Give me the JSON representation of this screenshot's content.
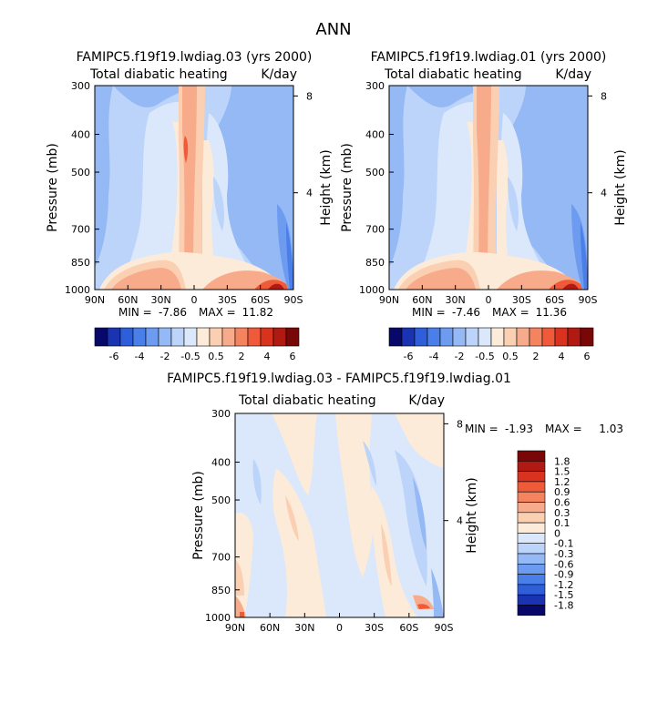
{
  "page_title": "ANN",
  "chart_data": [
    {
      "type": "heatmap",
      "title": "FAMIPC5.f19f19.lwdiag.03 (yrs 2000)",
      "left_string": "Total diabatic heating",
      "right_string": "K/day",
      "ylabel": "Pressure (mb)",
      "ylabel_right": "Height (km)",
      "x_ticks": [
        "90N",
        "60N",
        "30N",
        "0",
        "30S",
        "60S",
        "90S"
      ],
      "y_ticks": [
        "300",
        "400",
        "500",
        "700",
        "850",
        "1000"
      ],
      "y_ticks_right": [
        "8",
        "4"
      ],
      "stats": {
        "min_label": "MIN =",
        "min": "-7.86",
        "max_label": "MAX =",
        "max": "11.82"
      },
      "colorbar_labels": [
        "-6",
        "-4",
        "-2",
        "-0.5",
        "0.5",
        "2",
        "4",
        "6"
      ]
    },
    {
      "type": "heatmap",
      "title": "FAMIPC5.f19f19.lwdiag.01 (yrs 2000)",
      "left_string": "Total diabatic heating",
      "right_string": "K/day",
      "ylabel": "Pressure (mb)",
      "ylabel_right": "Height (km)",
      "x_ticks": [
        "90N",
        "60N",
        "30N",
        "0",
        "30S",
        "60S",
        "90S"
      ],
      "y_ticks": [
        "300",
        "400",
        "500",
        "700",
        "850",
        "1000"
      ],
      "y_ticks_right": [
        "8",
        "4"
      ],
      "stats": {
        "min_label": "MIN =",
        "min": "-7.46",
        "max_label": "MAX =",
        "max": "11.36"
      },
      "colorbar_labels": [
        "-6",
        "-4",
        "-2",
        "-0.5",
        "0.5",
        "2",
        "4",
        "6"
      ]
    },
    {
      "type": "heatmap",
      "title": "FAMIPC5.f19f19.lwdiag.03 - FAMIPC5.f19f19.lwdiag.01",
      "left_string": "Total diabatic heating",
      "right_string": "K/day",
      "ylabel": "Pressure (mb)",
      "ylabel_right": "Height (km)",
      "x_ticks": [
        "90N",
        "60N",
        "30N",
        "0",
        "30S",
        "60S",
        "90S"
      ],
      "y_ticks": [
        "300",
        "400",
        "500",
        "700",
        "850",
        "1000"
      ],
      "y_ticks_right": [
        "8",
        "4"
      ],
      "stats": {
        "min_label": "MIN =",
        "min": "-1.93",
        "max_label": "MAX =",
        "max": "1.03"
      },
      "colorbar_labels": [
        "1.8",
        "1.5",
        "1.2",
        "0.9",
        "0.6",
        "0.3",
        "0.1",
        "0",
        "-0.1",
        "-0.3",
        "-0.6",
        "-0.9",
        "-1.2",
        "-1.5",
        "-1.8"
      ]
    }
  ],
  "palettes": {
    "main": [
      "#08086b",
      "#1a33b3",
      "#2e5ed9",
      "#4a7ee8",
      "#6d9bf0",
      "#94b9f5",
      "#bcd4f9",
      "#dbe8fb",
      "#fdebd9",
      "#fbcfb2",
      "#f8ab8a",
      "#f4845f",
      "#ee5a3a",
      "#d9321e",
      "#b11a12",
      "#7a0707"
    ],
    "diff": [
      "#7a0707",
      "#b11a12",
      "#d9321e",
      "#ee5a3a",
      "#f4845f",
      "#f8ab8a",
      "#fbcfb2",
      "#fdebd9",
      "#dbe8fb",
      "#bcd4f9",
      "#94b9f5",
      "#6d9bf0",
      "#4a7ee8",
      "#2e5ed9",
      "#1a33b3",
      "#08086b"
    ]
  }
}
